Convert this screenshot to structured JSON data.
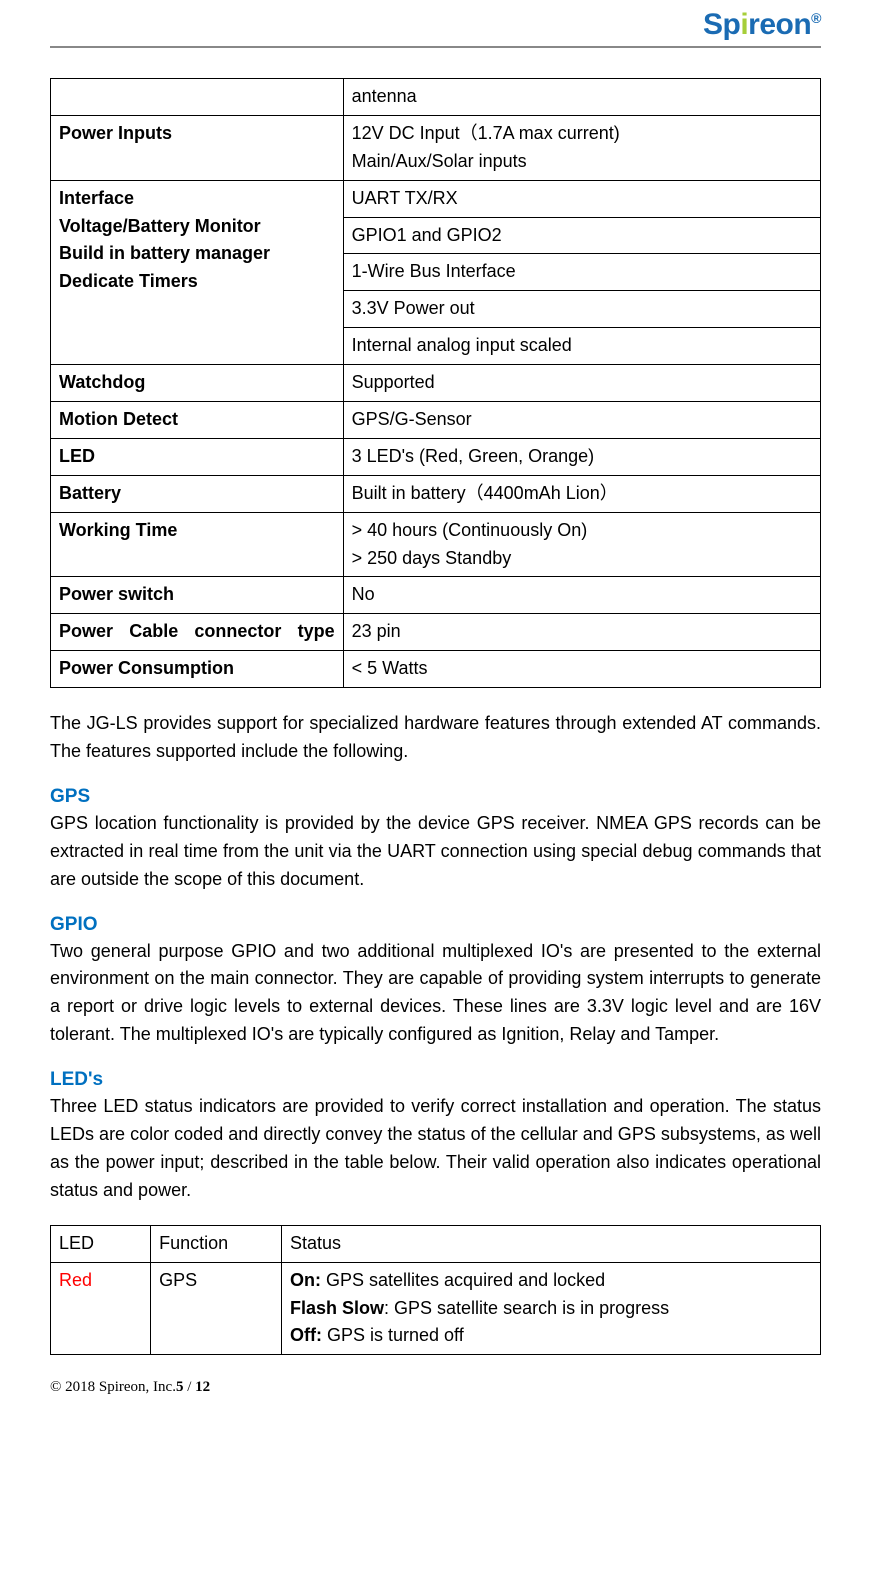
{
  "logo": {
    "brand_pre": "Sp",
    "brand_dot": "i",
    "brand_post": "reon",
    "reg": "®"
  },
  "spec_rows": [
    {
      "label": "",
      "value": "antenna"
    },
    {
      "label": "Power Inputs",
      "value": "12V DC Input（1.7A max current)\nMain/Aux/Solar inputs"
    },
    {
      "label": "Interface\nVoltage/Battery Monitor\nBuild in battery manager\nDedicate Timers",
      "rowspan": 5,
      "values": [
        "UART TX/RX",
        "GPIO1 and GPIO2",
        "1-Wire Bus Interface",
        "3.3V Power out",
        "Internal analog input scaled"
      ]
    },
    {
      "label": "Watchdog",
      "value": "Supported"
    },
    {
      "label": "Motion Detect",
      "value": "GPS/G-Sensor"
    },
    {
      "label": "LED",
      "value": "3 LED's (Red, Green, Orange)"
    },
    {
      "label": "Battery",
      "value": "Built in battery（4400mAh Lion）"
    },
    {
      "label": "Working Time",
      "value": "> 40 hours (Continuously On)\n> 250 days Standby"
    },
    {
      "label": "Power switch",
      "value": "No"
    },
    {
      "label": "Power Cable connector type",
      "value": "23 pin",
      "justify": true
    },
    {
      "label": "Power Consumption",
      "value": "< 5 Watts"
    }
  ],
  "intro_para": "The JG-LS provides support for specialized hardware features through extended AT commands. The features supported include the following.",
  "sections": {
    "gps": {
      "title": "GPS",
      "body": "GPS location functionality is provided by the device GPS receiver. NMEA GPS records can be extracted in real time from the unit via the UART connection using special debug commands that are outside the scope of this document."
    },
    "gpio": {
      "title": "GPIO",
      "body": "Two general purpose GPIO and two additional multiplexed IO's are presented to the external environment on the main connector. They are capable of providing system interrupts to generate a report or drive logic levels to external devices. These lines are 3.3V logic level and are 16V tolerant. The multiplexed IO's are typically configured as Ignition, Relay and Tamper."
    },
    "leds": {
      "title": "LED's",
      "body": "Three LED status indicators are provided to verify correct installation and operation. The status LEDs are color coded and directly convey the status of the cellular and GPS subsystems, as well as the power input; described in the table below. Their valid operation also indicates operational status and power."
    }
  },
  "led_table": {
    "headers": [
      "LED",
      "Function",
      "Status"
    ],
    "row": {
      "led": "Red",
      "function": "GPS",
      "status_lines": [
        {
          "bold": "On:",
          "rest": " GPS satellites acquired and locked"
        },
        {
          "bold": "Flash Slow",
          "rest": ": GPS satellite search is in progress"
        },
        {
          "bold": "Off:",
          "rest": " GPS is turned off"
        }
      ]
    }
  },
  "footer": {
    "copyright": "© 2018 Spireon, Inc.",
    "page_current": "5",
    "page_sep": " / ",
    "page_total": "12"
  }
}
